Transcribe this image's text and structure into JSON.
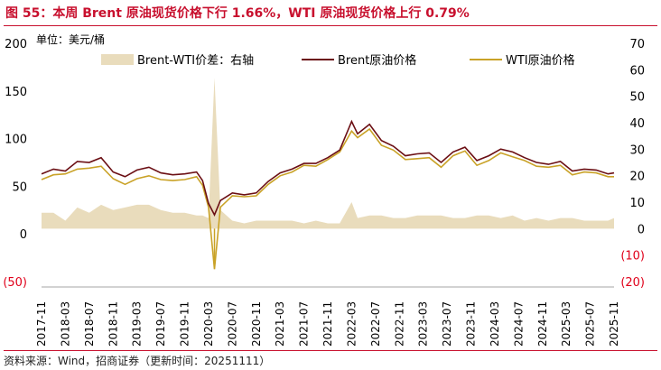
{
  "header": {
    "title": "图 55：本周 Brent 原油现货价格下行 1.66%，WTI 原油现货价格上行 0.79%",
    "unit": "单位：美元/桶"
  },
  "footer": {
    "source": "资料来源：Wind，招商证券（更新时间：20251111）"
  },
  "chart_data": {
    "type": "line",
    "title": "图 55：本周 Brent 原油现货价格下行 1.66%，WTI 原油现货价格上行 0.79%",
    "unit_label": "单位：美元/桶",
    "left_axis": {
      "ylim": [
        -50,
        200
      ],
      "ticks": [
        "(50)",
        "0",
        "50",
        "100",
        "150",
        "200"
      ]
    },
    "right_axis": {
      "ylim": [
        -20,
        70
      ],
      "ticks": [
        "(20)",
        "(10)",
        "0",
        "10",
        "20",
        "30",
        "40",
        "50",
        "60",
        "70"
      ]
    },
    "x_ticks": [
      "2017-11",
      "2018-03",
      "2018-07",
      "2018-11",
      "2019-03",
      "2019-07",
      "2019-11",
      "2020-03",
      "2020-07",
      "2020-11",
      "2021-03",
      "2021-07",
      "2021-11",
      "2022-03",
      "2022-07",
      "2022-11",
      "2023-03",
      "2023-07",
      "2023-11",
      "2024-03",
      "2024-07",
      "2024-11",
      "2025-03",
      "2025-07",
      "2025-11"
    ],
    "legend": [
      {
        "label": "Brent-WTI价差：右轴",
        "kind": "area"
      },
      {
        "label": "Brent原油价格",
        "kind": "line"
      },
      {
        "label": "WTI原油价格",
        "kind": "line"
      }
    ],
    "legend_position": "top",
    "grid": false,
    "colors": {
      "brent": "#6b0f14",
      "wti": "#c9a227",
      "spread": "#e9dcbc",
      "negative_tick": "#e0001a",
      "title": "#c8102e"
    },
    "x": [
      "2017-11",
      "2018-01",
      "2018-03",
      "2018-05",
      "2018-07",
      "2018-09",
      "2018-11",
      "2019-01",
      "2019-03",
      "2019-05",
      "2019-07",
      "2019-09",
      "2019-11",
      "2020-01",
      "2020-02",
      "2020-03",
      "2020-04",
      "2020-05",
      "2020-07",
      "2020-09",
      "2020-11",
      "2021-01",
      "2021-03",
      "2021-05",
      "2021-07",
      "2021-09",
      "2021-11",
      "2022-01",
      "2022-03",
      "2022-04",
      "2022-06",
      "2022-08",
      "2022-10",
      "2022-12",
      "2023-02",
      "2023-04",
      "2023-06",
      "2023-08",
      "2023-10",
      "2023-12",
      "2024-02",
      "2024-04",
      "2024-06",
      "2024-08",
      "2024-10",
      "2024-12",
      "2025-02",
      "2025-04",
      "2025-06",
      "2025-08",
      "2025-10",
      "2025-11"
    ],
    "series": [
      {
        "name": "Brent原油价格",
        "axis": "left",
        "values": [
          63,
          68,
          66,
          76,
          75,
          80,
          65,
          60,
          67,
          70,
          64,
          62,
          63,
          65,
          56,
          32,
          20,
          35,
          43,
          41,
          43,
          55,
          64,
          68,
          74,
          74,
          80,
          88,
          118,
          105,
          115,
          98,
          92,
          82,
          84,
          85,
          75,
          86,
          91,
          77,
          82,
          89,
          86,
          80,
          75,
          73,
          76,
          66,
          68,
          67,
          63,
          64
        ]
      },
      {
        "name": "WTI原油价格",
        "axis": "left",
        "values": [
          57,
          62,
          63,
          68,
          69,
          71,
          58,
          52,
          58,
          61,
          57,
          56,
          57,
          60,
          51,
          28,
          -37,
          28,
          40,
          39,
          40,
          52,
          61,
          65,
          72,
          71,
          78,
          86,
          108,
          101,
          110,
          93,
          88,
          78,
          79,
          80,
          70,
          82,
          87,
          72,
          77,
          85,
          81,
          77,
          71,
          70,
          72,
          62,
          65,
          64,
          60,
          60
        ]
      },
      {
        "name": "Brent-WTI价差：右轴",
        "axis": "right",
        "values": [
          6,
          6,
          3,
          8,
          6,
          9,
          7,
          8,
          9,
          9,
          7,
          6,
          6,
          5,
          5,
          4,
          57,
          7,
          3,
          2,
          3,
          3,
          3,
          3,
          2,
          3,
          2,
          2,
          10,
          4,
          5,
          5,
          4,
          4,
          5,
          5,
          5,
          4,
          4,
          5,
          5,
          4,
          5,
          3,
          4,
          3,
          4,
          4,
          3,
          3,
          3,
          4
        ]
      }
    ]
  }
}
